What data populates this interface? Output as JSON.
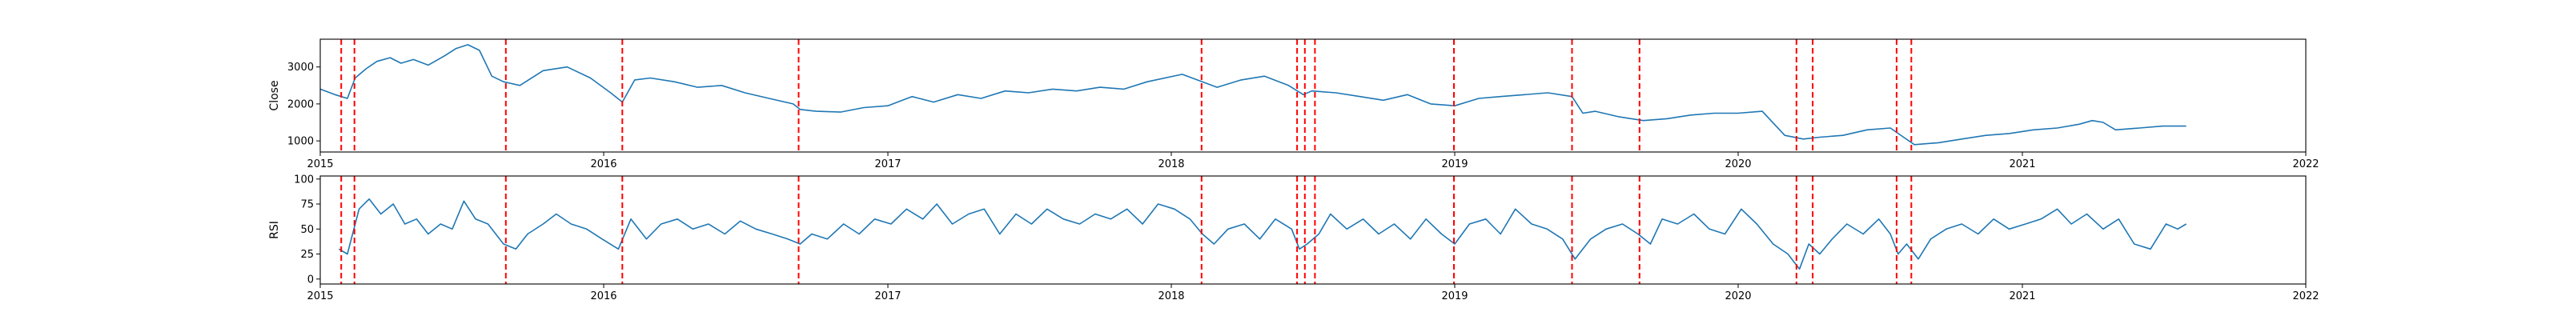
{
  "chart_data": [
    {
      "type": "line",
      "ylabel": "Close",
      "xlim": [
        "2015-01-01",
        "2022-01-01"
      ],
      "ylim": [
        700,
        3750
      ],
      "yticks": [
        1000,
        2000,
        3000
      ],
      "xtick_labels": [
        "2015",
        "2016",
        "2017",
        "2018",
        "2019",
        "2020",
        "2021",
        "2022"
      ],
      "grid": false,
      "series": [
        {
          "color": "#1f77b4",
          "x": [
            "2015-01-01",
            "2015-01-20",
            "2015-02-05",
            "2015-02-15",
            "2015-03-01",
            "2015-03-15",
            "2015-04-01",
            "2015-04-15",
            "2015-05-01",
            "2015-05-20",
            "2015-06-10",
            "2015-06-25",
            "2015-07-10",
            "2015-07-25",
            "2015-08-10",
            "2015-08-25",
            "2015-09-15",
            "2015-10-15",
            "2015-11-15",
            "2015-12-15",
            "2016-01-10",
            "2016-01-25",
            "2016-02-10",
            "2016-03-01",
            "2016-04-01",
            "2016-05-01",
            "2016-06-01",
            "2016-07-01",
            "2016-08-01",
            "2016-09-01",
            "2016-09-10",
            "2016-10-01",
            "2016-11-01",
            "2016-12-01",
            "2017-01-01",
            "2017-02-01",
            "2017-03-01",
            "2017-04-01",
            "2017-05-01",
            "2017-06-01",
            "2017-07-01",
            "2017-08-01",
            "2017-09-01",
            "2017-10-01",
            "2017-11-01",
            "2017-12-01",
            "2018-01-15",
            "2018-02-10",
            "2018-03-01",
            "2018-04-01",
            "2018-05-01",
            "2018-06-01",
            "2018-06-20",
            "2018-07-01",
            "2018-08-01",
            "2018-09-01",
            "2018-10-01",
            "2018-11-01",
            "2018-12-01",
            "2019-01-01",
            "2019-02-01",
            "2019-03-01",
            "2019-04-01",
            "2019-05-01",
            "2019-06-01",
            "2019-06-15",
            "2019-07-01",
            "2019-08-01",
            "2019-09-01",
            "2019-10-01",
            "2019-11-01",
            "2019-12-01",
            "2020-01-01",
            "2020-02-01",
            "2020-03-01",
            "2020-03-25",
            "2020-04-15",
            "2020-05-15",
            "2020-06-15",
            "2020-07-15",
            "2020-08-01",
            "2020-08-15",
            "2020-09-15",
            "2020-10-15",
            "2020-11-15",
            "2020-12-15",
            "2021-01-15",
            "2021-02-15",
            "2021-03-15",
            "2021-04-01",
            "2021-04-15",
            "2021-05-01",
            "2021-06-01",
            "2021-07-01",
            "2021-07-31"
          ],
          "y": [
            2400,
            2250,
            2150,
            2700,
            2950,
            3150,
            3250,
            3100,
            3200,
            3050,
            3300,
            3500,
            3600,
            3450,
            2750,
            2600,
            2500,
            2900,
            3000,
            2700,
            2300,
            2050,
            2650,
            2700,
            2600,
            2450,
            2500,
            2300,
            2150,
            2000,
            1850,
            1800,
            1780,
            1900,
            1950,
            2200,
            2050,
            2250,
            2150,
            2350,
            2300,
            2400,
            2350,
            2450,
            2400,
            2600,
            2800,
            2600,
            2450,
            2650,
            2750,
            2500,
            2250,
            2350,
            2300,
            2200,
            2100,
            2250,
            2000,
            1950,
            2150,
            2200,
            2250,
            2300,
            2200,
            1750,
            1800,
            1650,
            1550,
            1600,
            1700,
            1750,
            1750,
            1800,
            1150,
            1050,
            1100,
            1150,
            1300,
            1350,
            1100,
            900,
            950,
            1050,
            1150,
            1200,
            1300,
            1350,
            1450,
            1550,
            1500,
            1300,
            1350,
            1400,
            1400
          ]
        }
      ],
      "event_dates": [
        "2015-01-28",
        "2015-02-14",
        "2015-08-28",
        "2016-01-25",
        "2016-09-08",
        "2018-02-09",
        "2018-06-12",
        "2018-06-22",
        "2018-07-05",
        "2018-12-31",
        "2019-06-01",
        "2019-08-27",
        "2020-03-16",
        "2020-04-06",
        "2020-07-23",
        "2020-08-11"
      ],
      "event_color": "#ff0000"
    },
    {
      "type": "line",
      "ylabel": "RSI",
      "xlim": [
        "2015-01-01",
        "2022-01-01"
      ],
      "ylim": [
        -5,
        103
      ],
      "yticks": [
        0,
        25,
        50,
        75,
        100
      ],
      "xtick_labels": [
        "2015",
        "2016",
        "2017",
        "2018",
        "2019",
        "2020",
        "2021",
        "2022"
      ],
      "grid": false,
      "series": [
        {
          "color": "#1f77b4",
          "x": [
            "2015-01-25",
            "2015-02-05",
            "2015-02-20",
            "2015-03-05",
            "2015-03-20",
            "2015-04-05",
            "2015-04-20",
            "2015-05-05",
            "2015-05-20",
            "2015-06-05",
            "2015-06-20",
            "2015-07-05",
            "2015-07-20",
            "2015-08-05",
            "2015-08-25",
            "2015-09-10",
            "2015-09-25",
            "2015-10-15",
            "2015-11-01",
            "2015-11-20",
            "2015-12-10",
            "2015-12-30",
            "2016-01-20",
            "2016-02-05",
            "2016-02-25",
            "2016-03-15",
            "2016-04-05",
            "2016-04-25",
            "2016-05-15",
            "2016-06-05",
            "2016-06-25",
            "2016-07-15",
            "2016-08-05",
            "2016-08-25",
            "2016-09-10",
            "2016-09-25",
            "2016-10-15",
            "2016-11-05",
            "2016-11-25",
            "2016-12-15",
            "2017-01-05",
            "2017-01-25",
            "2017-02-15",
            "2017-03-05",
            "2017-03-25",
            "2017-04-15",
            "2017-05-05",
            "2017-05-25",
            "2017-06-15",
            "2017-07-05",
            "2017-07-25",
            "2017-08-15",
            "2017-09-05",
            "2017-09-25",
            "2017-10-15",
            "2017-11-05",
            "2017-11-25",
            "2017-12-15",
            "2018-01-05",
            "2018-01-25",
            "2018-02-10",
            "2018-02-25",
            "2018-03-15",
            "2018-04-05",
            "2018-04-25",
            "2018-05-15",
            "2018-06-05",
            "2018-06-15",
            "2018-06-25",
            "2018-07-10",
            "2018-07-25",
            "2018-08-15",
            "2018-09-05",
            "2018-09-25",
            "2018-10-15",
            "2018-11-05",
            "2018-11-25",
            "2018-12-15",
            "2019-01-01",
            "2019-01-20",
            "2019-02-10",
            "2019-03-01",
            "2019-03-20",
            "2019-04-10",
            "2019-04-30",
            "2019-05-20",
            "2019-06-05",
            "2019-06-25",
            "2019-07-15",
            "2019-08-05",
            "2019-08-25",
            "2019-09-10",
            "2019-09-25",
            "2019-10-15",
            "2019-11-05",
            "2019-11-25",
            "2019-12-15",
            "2020-01-05",
            "2020-01-25",
            "2020-02-15",
            "2020-03-05",
            "2020-03-20",
            "2020-04-01",
            "2020-04-15",
            "2020-05-01",
            "2020-05-20",
            "2020-06-10",
            "2020-06-30",
            "2020-07-15",
            "2020-07-25",
            "2020-08-05",
            "2020-08-20",
            "2020-09-05",
            "2020-09-25",
            "2020-10-15",
            "2020-11-05",
            "2020-11-25",
            "2020-12-15",
            "2021-01-05",
            "2021-01-25",
            "2021-02-15",
            "2021-03-05",
            "2021-03-25",
            "2021-04-15",
            "2021-05-05",
            "2021-05-25",
            "2021-06-15",
            "2021-07-05",
            "2021-07-20",
            "2021-07-31"
          ],
          "y": [
            30,
            25,
            70,
            80,
            65,
            75,
            55,
            60,
            45,
            55,
            50,
            78,
            60,
            55,
            35,
            30,
            45,
            55,
            65,
            55,
            50,
            40,
            30,
            60,
            40,
            55,
            60,
            50,
            55,
            45,
            58,
            50,
            45,
            40,
            35,
            45,
            40,
            55,
            45,
            60,
            55,
            70,
            60,
            75,
            55,
            65,
            70,
            45,
            65,
            55,
            70,
            60,
            55,
            65,
            60,
            70,
            55,
            75,
            70,
            60,
            45,
            35,
            50,
            55,
            40,
            60,
            50,
            30,
            35,
            45,
            65,
            50,
            60,
            45,
            55,
            40,
            60,
            45,
            35,
            55,
            60,
            45,
            70,
            55,
            50,
            40,
            20,
            40,
            50,
            55,
            45,
            35,
            60,
            55,
            65,
            50,
            45,
            70,
            55,
            35,
            25,
            10,
            35,
            25,
            40,
            55,
            45,
            60,
            45,
            25,
            35,
            20,
            40,
            50,
            55,
            45,
            60,
            50,
            55,
            60,
            70,
            55,
            65,
            50,
            60,
            35,
            30,
            55,
            50,
            55
          ]
        }
      ],
      "event_dates": [
        "2015-01-28",
        "2015-02-14",
        "2015-08-28",
        "2016-01-25",
        "2016-09-08",
        "2018-02-09",
        "2018-06-12",
        "2018-06-22",
        "2018-07-05",
        "2018-12-31",
        "2019-06-01",
        "2019-08-27",
        "2020-03-16",
        "2020-04-06",
        "2020-07-23",
        "2020-08-11"
      ],
      "event_color": "#ff0000"
    }
  ]
}
